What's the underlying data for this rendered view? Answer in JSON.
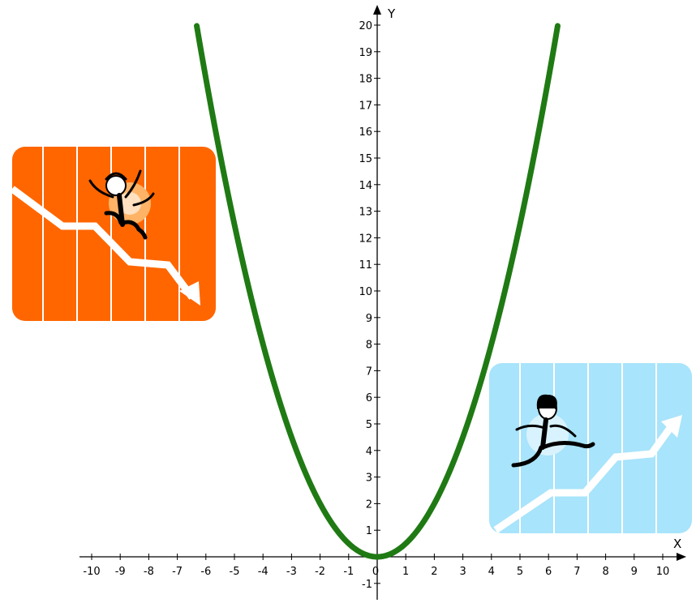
{
  "chart_data": {
    "type": "line",
    "title": "",
    "xlabel": "X",
    "ylabel": "Y",
    "xlim": [
      -10,
      10
    ],
    "ylim": [
      -1,
      20
    ],
    "x_ticks": [
      "-10",
      "-9",
      "-8",
      "-7",
      "-6",
      "-5",
      "-4",
      "-3",
      "-2",
      "-1",
      "0",
      "1",
      "2",
      "3",
      "4",
      "5",
      "6",
      "7",
      "8",
      "9",
      "10"
    ],
    "y_ticks": [
      "-1",
      "1",
      "2",
      "3",
      "4",
      "5",
      "6",
      "7",
      "8",
      "9",
      "10",
      "11",
      "12",
      "13",
      "14",
      "15",
      "16",
      "17",
      "18",
      "19",
      "20"
    ],
    "grid": false,
    "series": [
      {
        "color": "#1f7a14",
        "function": "y = 0.5 * x^2",
        "x": [
          -6.32,
          -6,
          -5.5,
          -5,
          -4.5,
          -4,
          -3.5,
          -3,
          -2.5,
          -2,
          -1.5,
          -1,
          -0.5,
          0,
          0.5,
          1,
          1.5,
          2,
          2.5,
          3,
          3.5,
          4,
          4.5,
          5,
          5.5,
          6,
          6.32
        ],
        "y": [
          20,
          18,
          15.13,
          12.5,
          10.13,
          8,
          6.13,
          4.5,
          3.13,
          2,
          1.13,
          0.5,
          0.13,
          0,
          0.13,
          0.5,
          1.13,
          2,
          3.13,
          4.5,
          6.13,
          8,
          10.13,
          12.5,
          15.13,
          18,
          20
        ]
      }
    ]
  },
  "illustrations": {
    "left": {
      "icon": "falling-businessman-declining-chart-icon",
      "background": "#ff6600"
    },
    "right": {
      "icon": "running-businesswoman-rising-chart-icon",
      "background": "#a8e4fb"
    }
  }
}
